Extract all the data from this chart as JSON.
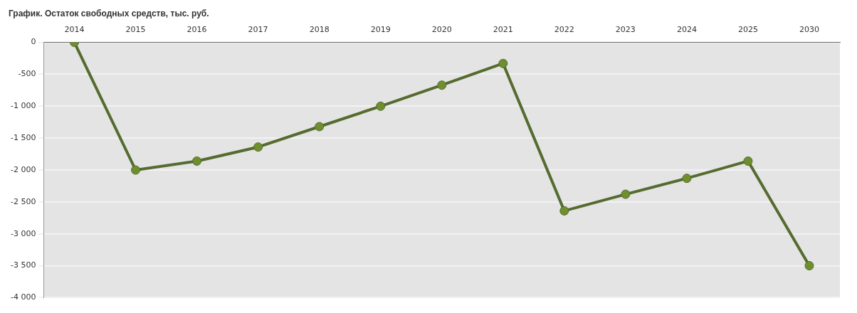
{
  "chart_data": {
    "type": "line",
    "title": "График. Остаток свободных средств, тыс. руб.",
    "categories": [
      "2014",
      "2015",
      "2016",
      "2017",
      "2018",
      "2019",
      "2020",
      "2021",
      "2022",
      "2023",
      "2024",
      "2025",
      "2030"
    ],
    "series": [
      {
        "color": "#556b2f",
        "values": [
          0,
          -2000,
          -1860,
          -1640,
          -1320,
          -1000,
          -670,
          -330,
          -2640,
          -2380,
          -2130,
          -1860,
          -3500
        ]
      }
    ],
    "ylim": [
      -4000,
      0
    ],
    "yticks": [
      {
        "value": 0,
        "label": "0"
      },
      {
        "value": -500,
        "label": "-500"
      },
      {
        "value": -1000,
        "label": "-1 000"
      },
      {
        "value": -1500,
        "label": "-1 500"
      },
      {
        "value": -2000,
        "label": "-2 000"
      },
      {
        "value": -2500,
        "label": "-2 500"
      },
      {
        "value": -3000,
        "label": "-3 000"
      },
      {
        "value": -3500,
        "label": "-3 500"
      },
      {
        "value": -4000,
        "label": "-4 000"
      }
    ],
    "grid": "y",
    "marker": "circle",
    "line_style": "solid",
    "legend": false
  }
}
